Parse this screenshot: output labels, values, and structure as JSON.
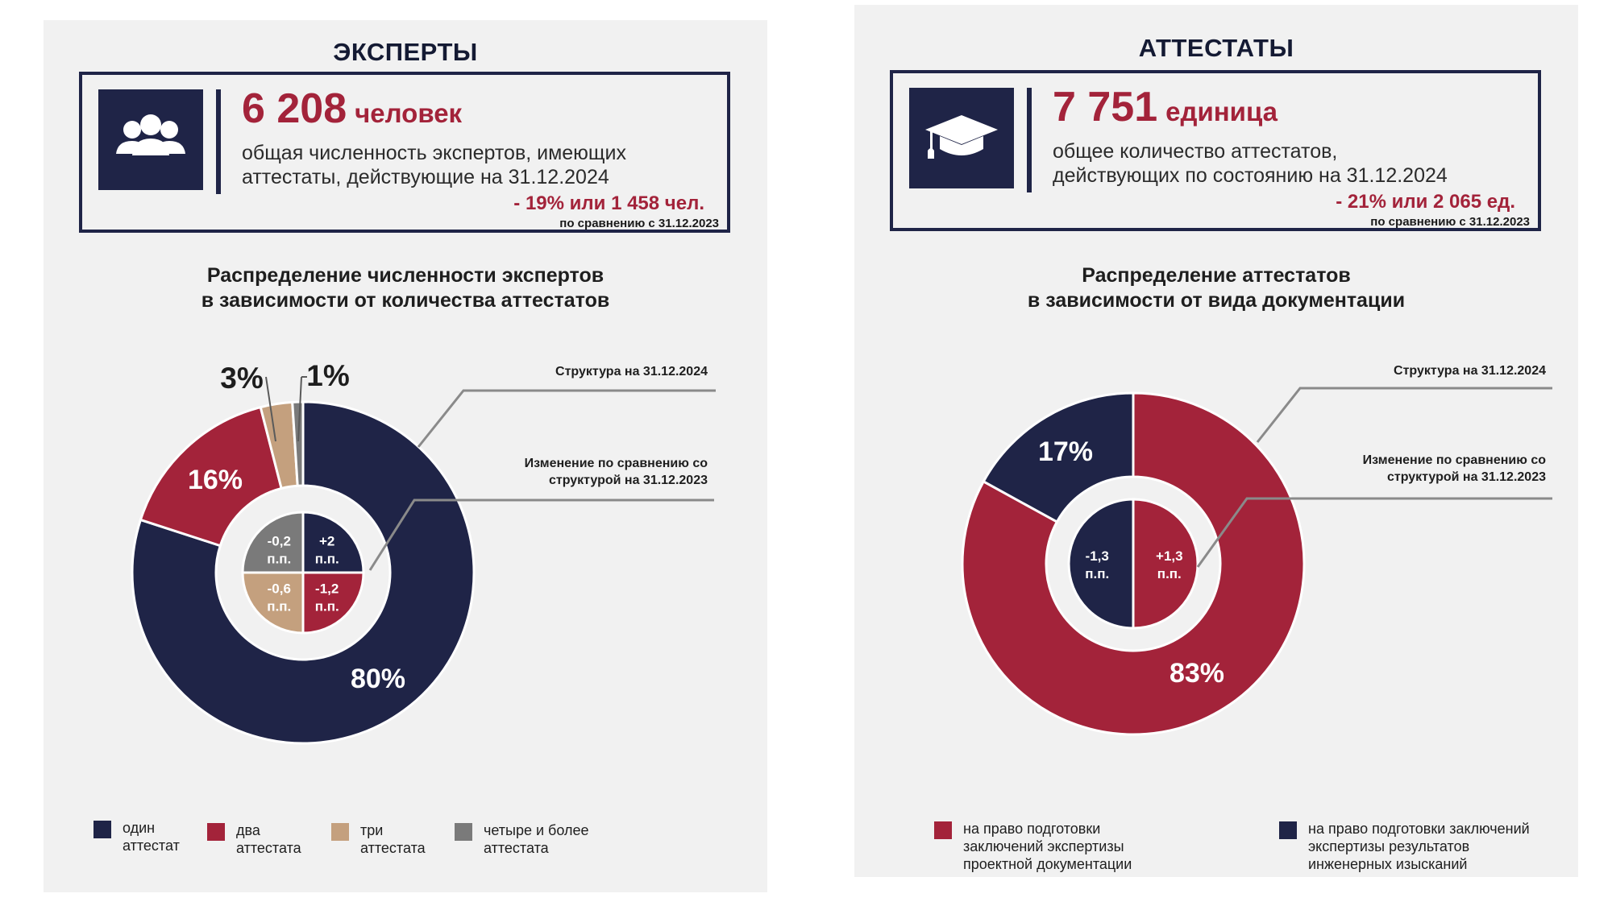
{
  "left": {
    "title": "ЭКСПЕРТЫ",
    "kpi": {
      "icon": "people-group-icon",
      "number": "6 208",
      "unit": "человек",
      "desc1": "общая численность экспертов, имеющих",
      "desc2": "аттестаты, действующие на 31.12.2024",
      "change": "- 19% или 1 458 чел.",
      "note": "по сравнению с 31.12.2023"
    },
    "subtitle1": "Распределение численности экспертов",
    "subtitle2": "в зависимости от количества аттестатов",
    "annot_structure": "Структура на 31.12.2024",
    "annot_change1": "Изменение по сравнению со",
    "annot_change2": "структурой на 31.12.2023",
    "legend": [
      {
        "l1": "один",
        "l2": "аттестат"
      },
      {
        "l1": "два",
        "l2": "аттестата"
      },
      {
        "l1": "три",
        "l2": "аттестата"
      },
      {
        "l1": "четыре и более",
        "l2": "аттестата"
      }
    ]
  },
  "right": {
    "title": "АТТЕСТАТЫ",
    "kpi": {
      "icon": "graduation-cap-icon",
      "number": "7 751",
      "unit": "единица",
      "desc1": "общее количество аттестатов,",
      "desc2": "действующих по состоянию на 31.12.2024",
      "change": "- 21% или 2 065 ед.",
      "note": "по сравнению с 31.12.2023"
    },
    "subtitle1": "Распределение аттестатов",
    "subtitle2": "в зависимости от вида документации",
    "annot_structure": "Структура на 31.12.2024",
    "annot_change1": "Изменение по сравнению со",
    "annot_change2": "структурой на 31.12.2023",
    "legend": [
      {
        "l1": "на право подготовки",
        "l2": "заключений экспертизы",
        "l3": "проектной документации"
      },
      {
        "l1": "на право подготовки заключений",
        "l2": "экспертизы результатов",
        "l3": "инженерных изысканий"
      }
    ]
  },
  "chart_data": [
    {
      "type": "pie",
      "variant": "donut",
      "series": [
        {
          "name": "Структура на 31.12.2024",
          "unit": "%",
          "categories": [
            "один аттестат",
            "два аттестата",
            "три аттестата",
            "четыре и более аттестата"
          ],
          "values": [
            80,
            16,
            3,
            1
          ],
          "labels": [
            "80%",
            "16%",
            "3%",
            "1%"
          ],
          "colors": [
            "#1f2447",
            "#a3233a",
            "#c4a07e",
            "#7a7a7a"
          ]
        },
        {
          "name": "Изменение по сравнению со структурой на 31.12.2023",
          "unit": "п.п.",
          "categories": [
            "один аттестат",
            "два аттестата",
            "три аттестата",
            "четыре и более аттестата"
          ],
          "values": [
            2,
            -1.2,
            -0.6,
            -0.2
          ],
          "labels": [
            [
              "+2",
              "п.п."
            ],
            [
              "-1,2",
              "п.п."
            ],
            [
              "-0,6",
              "п.п."
            ],
            [
              "-0,2",
              "п.п."
            ]
          ],
          "colors": [
            "#1f2447",
            "#a3233a",
            "#c4a07e",
            "#7a7a7a"
          ]
        }
      ]
    },
    {
      "type": "pie",
      "variant": "donut",
      "series": [
        {
          "name": "Структура на 31.12.2024",
          "unit": "%",
          "categories": [
            "на право подготовки заключений экспертизы проектной документации",
            "на право подготовки заключений экспертизы результатов инженерных изысканий"
          ],
          "values": [
            83,
            17
          ],
          "labels": [
            "83%",
            "17%"
          ],
          "colors": [
            "#a3233a",
            "#1f2447"
          ]
        },
        {
          "name": "Изменение по сравнению со структурой на 31.12.2023",
          "unit": "п.п.",
          "categories": [
            "на право подготовки заключений экспертизы проектной документации",
            "на право подготовки заключений экспертизы результатов инженерных изысканий"
          ],
          "values": [
            1.3,
            -1.3
          ],
          "labels": [
            [
              "+1,3",
              "п.п."
            ],
            [
              "-1,3",
              "п.п."
            ]
          ],
          "colors": [
            "#a3233a",
            "#1f2447"
          ]
        }
      ]
    }
  ]
}
